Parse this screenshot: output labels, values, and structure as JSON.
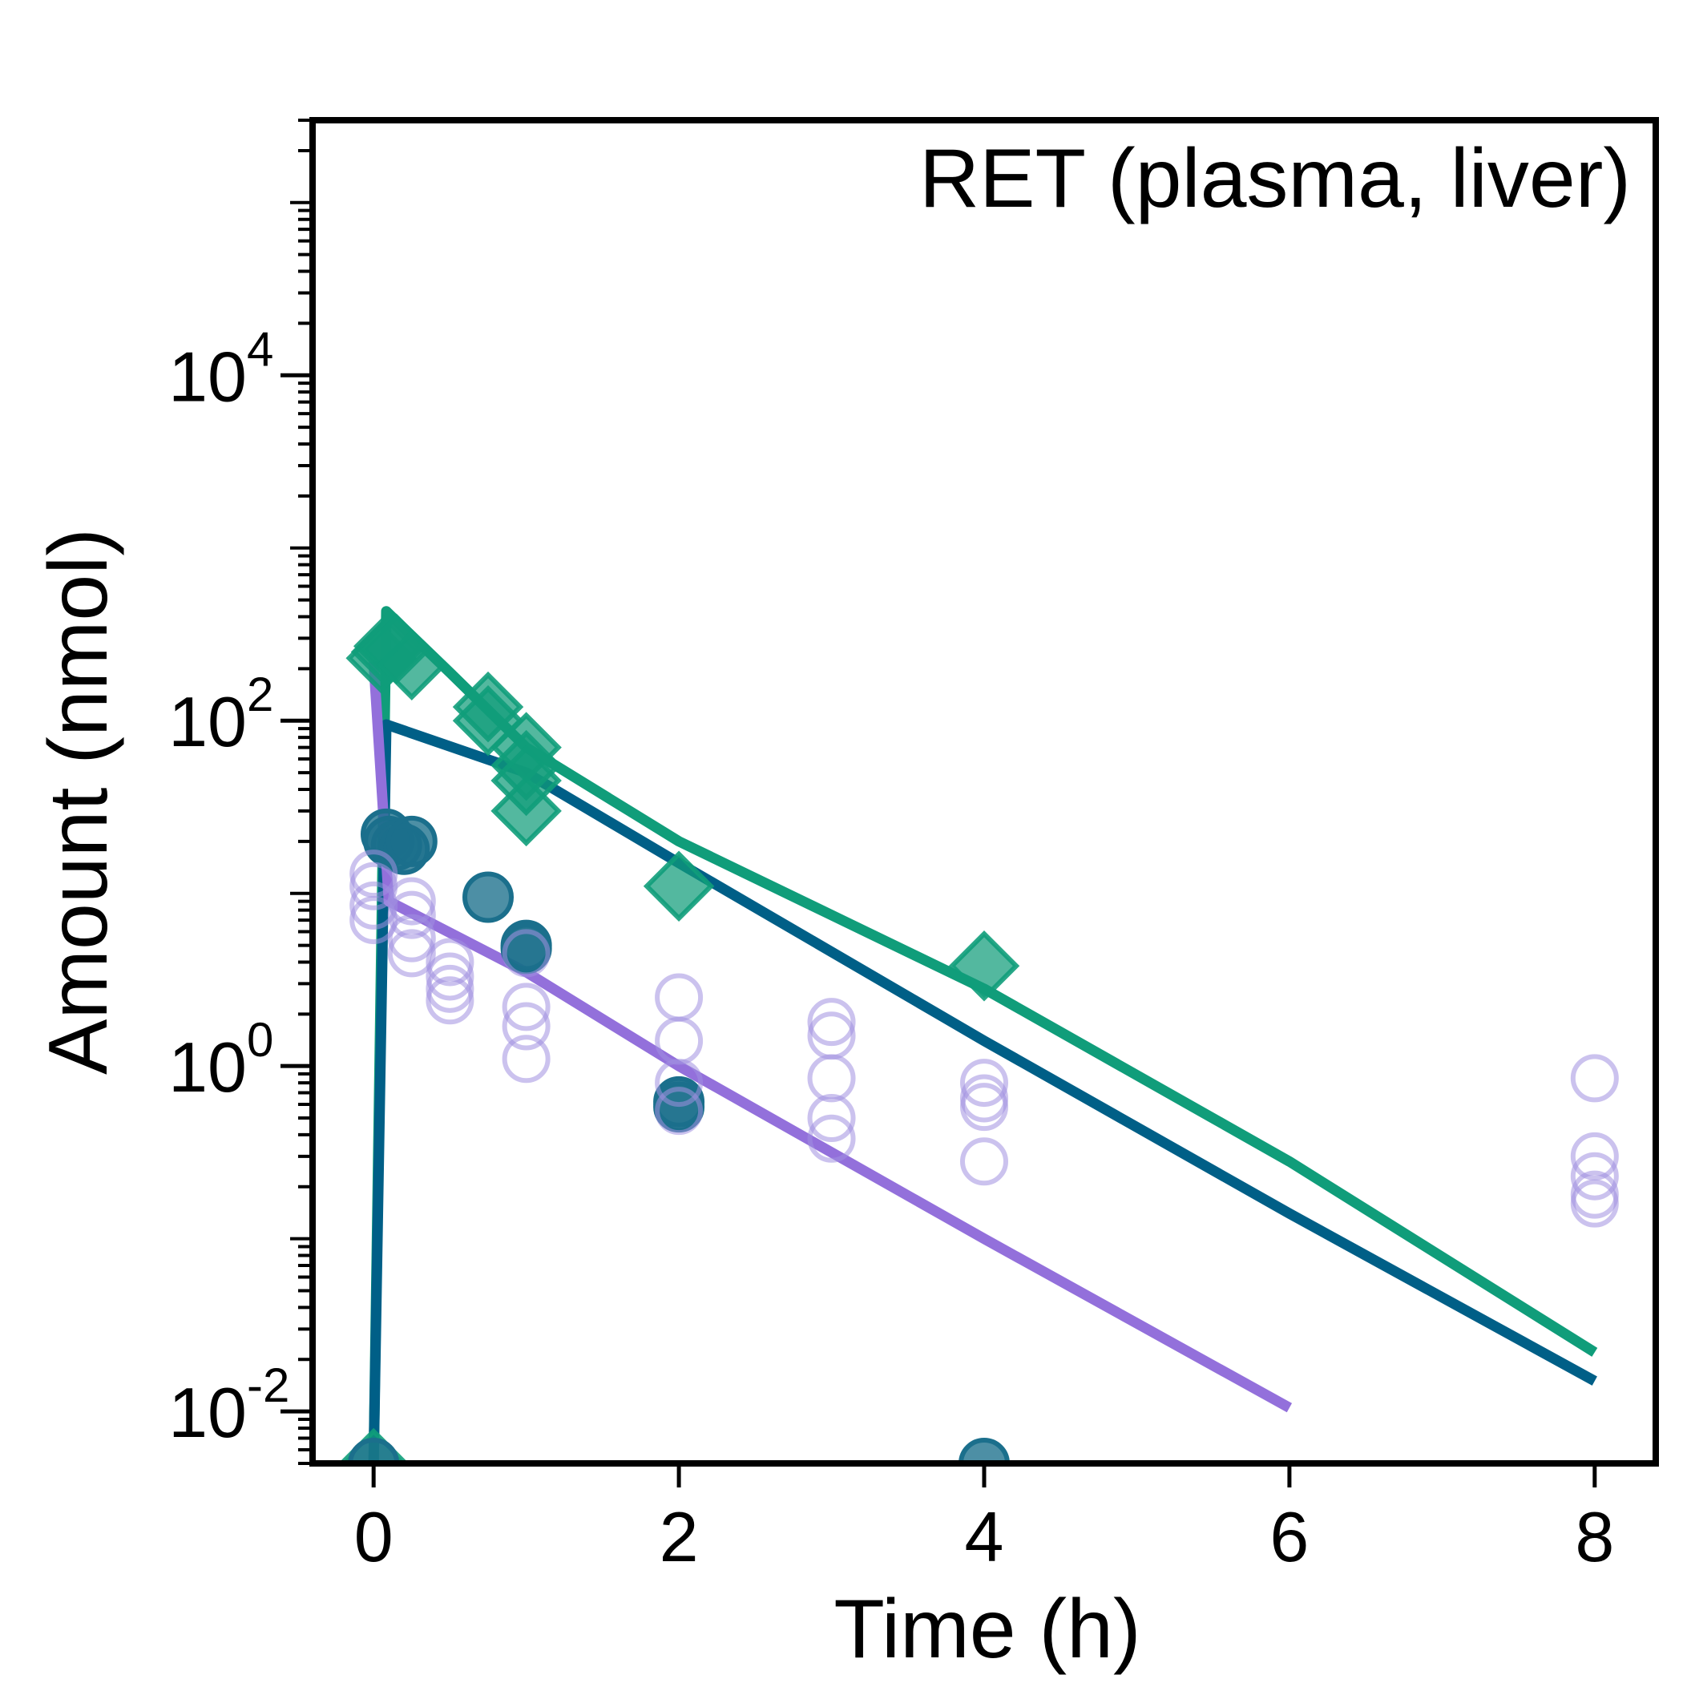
{
  "chart_data": {
    "type": "scatter",
    "title": "RET (plasma, liver)",
    "xlabel": "Time (h)",
    "ylabel": "Amount (nmol)",
    "x_ticks": [
      0,
      2,
      4,
      6,
      8
    ],
    "y_scale": "log",
    "y_ticks": [
      {
        "value": 0.01,
        "base": "10",
        "exp": "-2"
      },
      {
        "value": 1,
        "base": "10",
        "exp": "0"
      },
      {
        "value": 100,
        "base": "10",
        "exp": "2"
      },
      {
        "value": 10000,
        "base": "10",
        "exp": "4"
      }
    ],
    "xlim": [
      -0.4,
      8.4
    ],
    "ylim": [
      0.005,
      300000
    ],
    "grid": false,
    "legend": "none",
    "series": [
      {
        "kind": "observed",
        "marker": "diamond-filled",
        "color": "#109D7A",
        "points": [
          [
            0,
            0.005
          ],
          [
            0.05,
            230
          ],
          [
            0.083,
            250
          ],
          [
            0.1,
            270
          ],
          [
            0.15,
            260
          ],
          [
            0.25,
            210
          ],
          [
            0.75,
            120
          ],
          [
            0.75,
            100
          ],
          [
            1,
            70
          ],
          [
            1,
            55
          ],
          [
            1,
            45
          ],
          [
            1,
            30
          ],
          [
            2,
            11
          ],
          [
            4,
            3.8
          ]
        ]
      },
      {
        "kind": "observed",
        "marker": "circle-filled",
        "color": "#1B6F8C",
        "points": [
          [
            0,
            0.005
          ],
          [
            0.083,
            22
          ],
          [
            0.1,
            20
          ],
          [
            0.15,
            19
          ],
          [
            0.2,
            18
          ],
          [
            0.25,
            20
          ],
          [
            0.75,
            9.5
          ],
          [
            1,
            5
          ],
          [
            1,
            4.8
          ],
          [
            2,
            0.62
          ],
          [
            2,
            0.58
          ],
          [
            4,
            0.005
          ]
        ]
      },
      {
        "kind": "observed",
        "marker": "circle-open",
        "color": "#A08FE0",
        "points": [
          [
            0,
            13
          ],
          [
            0,
            11
          ],
          [
            0,
            8.5
          ],
          [
            0,
            7
          ],
          [
            0.25,
            9
          ],
          [
            0.25,
            7.5
          ],
          [
            0.25,
            5.5
          ],
          [
            0.25,
            4.5
          ],
          [
            0.5,
            4
          ],
          [
            0.5,
            3.3
          ],
          [
            0.5,
            2.8
          ],
          [
            0.5,
            2.4
          ],
          [
            1,
            4.5
          ],
          [
            1,
            2.2
          ],
          [
            1,
            1.7
          ],
          [
            1,
            1.1
          ],
          [
            2,
            2.5
          ],
          [
            2,
            1.4
          ],
          [
            2,
            0.8
          ],
          [
            2,
            0.55
          ],
          [
            3,
            1.8
          ],
          [
            3,
            1.5
          ],
          [
            3,
            0.85
          ],
          [
            3,
            0.5
          ],
          [
            3,
            0.38
          ],
          [
            4,
            0.8
          ],
          [
            4,
            0.65
          ],
          [
            4,
            0.58
          ],
          [
            4,
            0.28
          ],
          [
            8,
            0.85
          ],
          [
            8,
            0.3
          ],
          [
            8,
            0.23
          ],
          [
            8,
            0.18
          ],
          [
            8,
            0.16
          ]
        ]
      },
      {
        "kind": "model",
        "color": "#109D7A",
        "points": [
          [
            0,
            0.005
          ],
          [
            0.083,
            430
          ],
          [
            0.5,
            190
          ],
          [
            1,
            70
          ],
          [
            2,
            20
          ],
          [
            4,
            2.8
          ],
          [
            6,
            0.28
          ],
          [
            8,
            0.022
          ]
        ]
      },
      {
        "kind": "model",
        "color": "#005F87",
        "points": [
          [
            0,
            0.005
          ],
          [
            0.083,
            95
          ],
          [
            1,
            50
          ],
          [
            2,
            15
          ],
          [
            4,
            1.4
          ],
          [
            6,
            0.14
          ],
          [
            8,
            0.015
          ]
        ]
      },
      {
        "kind": "model",
        "color": "#9370DB",
        "points": [
          [
            0,
            220
          ],
          [
            0.1,
            9
          ],
          [
            1,
            3.5
          ],
          [
            2,
            1
          ],
          [
            4,
            0.1
          ],
          [
            6,
            0.0105
          ]
        ]
      }
    ]
  }
}
